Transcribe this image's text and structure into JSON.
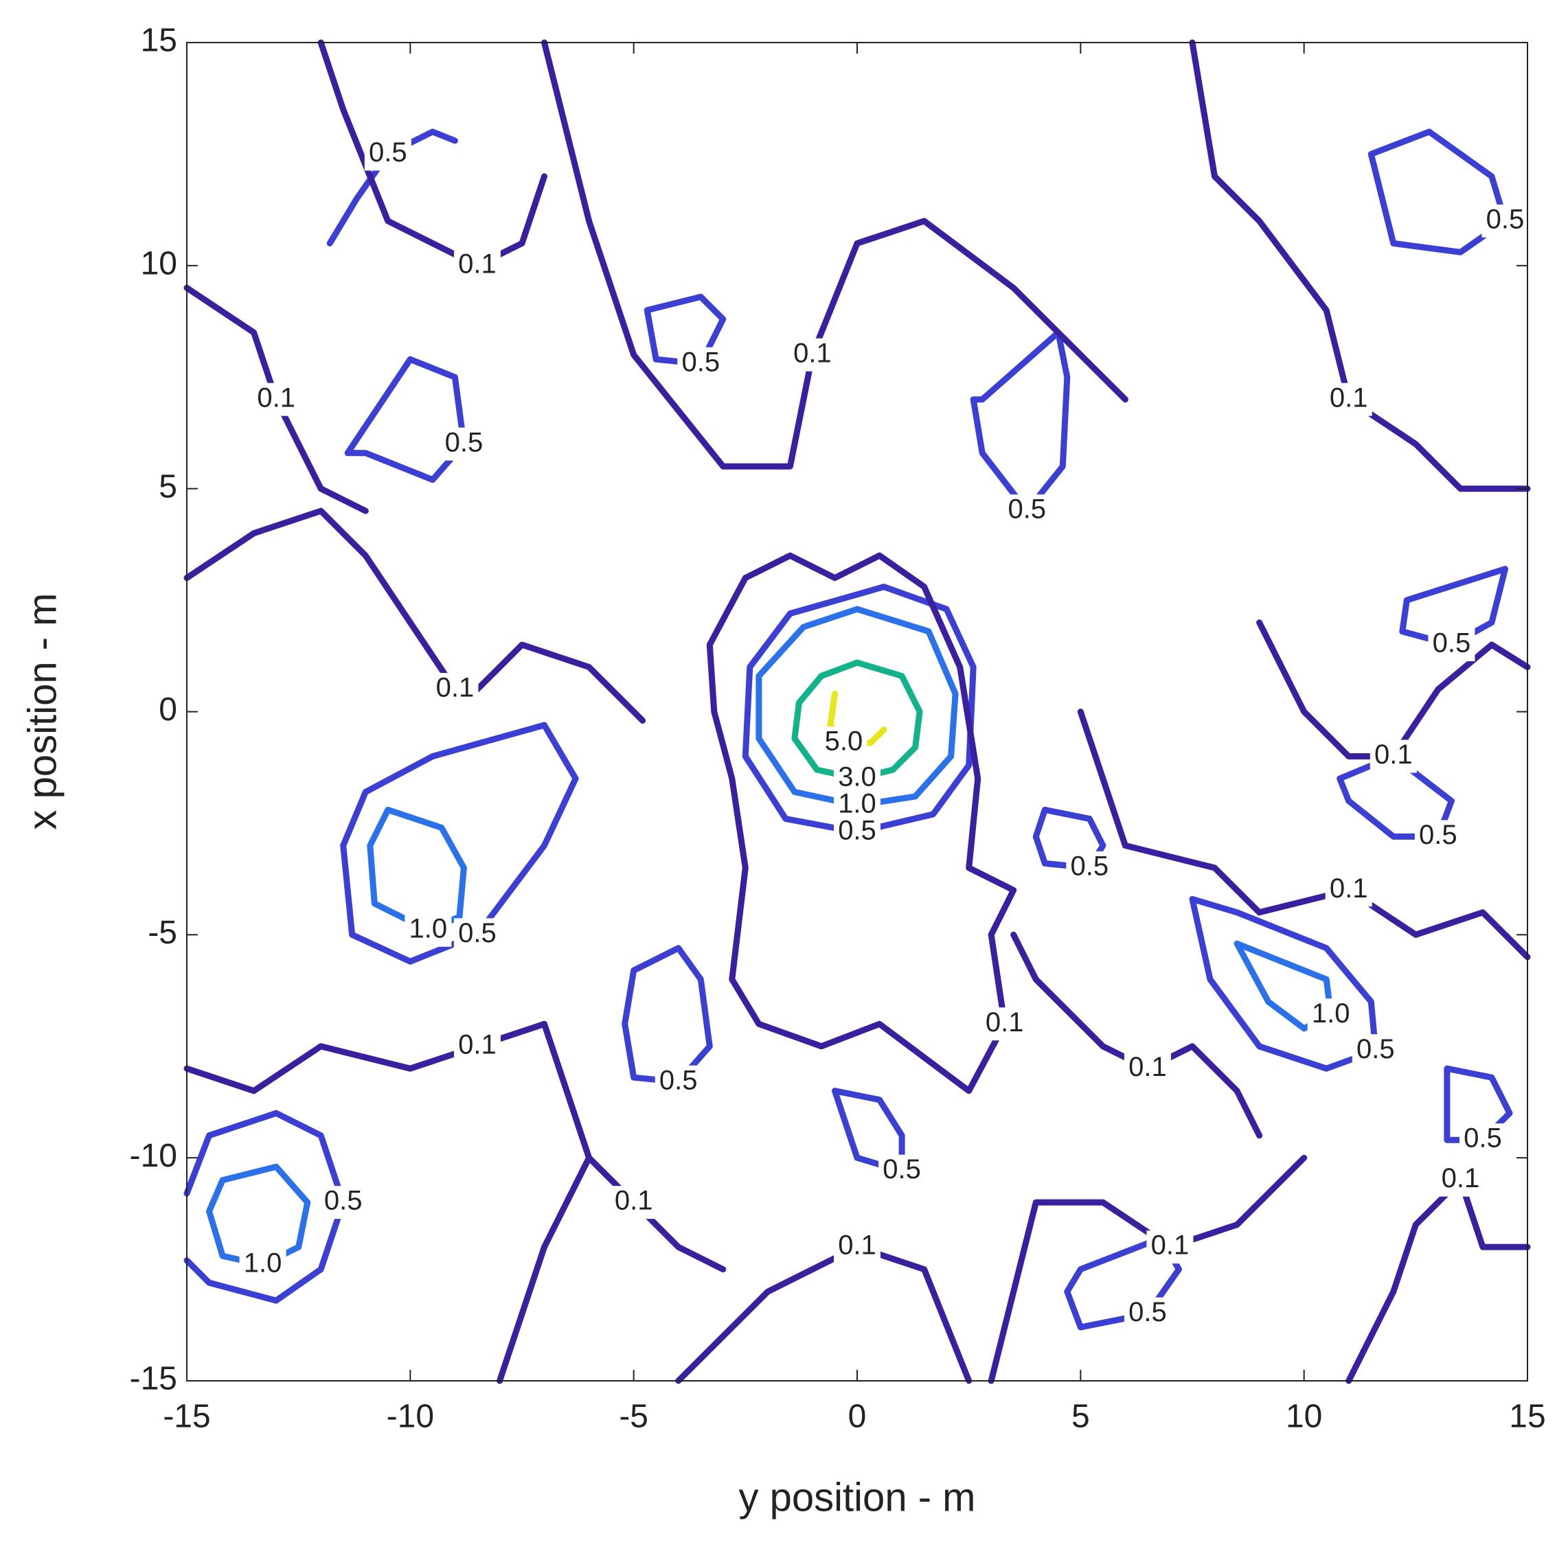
{
  "chart_data": {
    "type": "contour",
    "xlabel": "y position - m",
    "ylabel": "x position - m",
    "xlim": [
      -15,
      15
    ],
    "ylim": [
      -15,
      15
    ],
    "xticks": [
      -15,
      -10,
      -5,
      0,
      5,
      10,
      15
    ],
    "yticks": [
      -15,
      -10,
      -5,
      0,
      5,
      10,
      15
    ],
    "levels": [
      {
        "value": 0.1,
        "label": "0.1",
        "color": "#3a1f9e"
      },
      {
        "value": 0.5,
        "label": "0.5",
        "color": "#3c3fd4"
      },
      {
        "value": 1,
        "label": "1.0",
        "color": "#2b72ea"
      },
      {
        "value": 3,
        "label": "3.0",
        "color": "#12b38c"
      },
      {
        "value": 5,
        "label": "5.0",
        "color": "#e6e61a"
      }
    ],
    "contours": [
      {
        "level": 5,
        "x": [
          -0.5,
          -0.6,
          -0.3,
          0.3,
          0.6
        ],
        "y": [
          0.4,
          -0.3,
          -0.7,
          -0.7,
          -0.4
        ]
      },
      {
        "level": 3,
        "x": [
          0,
          1.0,
          1.4,
          1.3,
          0.8,
          0,
          -0.9,
          -1.4,
          -1.3,
          -0.8,
          0
        ],
        "y": [
          1.1,
          0.8,
          0,
          -0.8,
          -1.3,
          -1.5,
          -1.3,
          -0.6,
          0.2,
          0.8,
          1.1
        ]
      },
      {
        "level": 1,
        "x": [
          0,
          1.6,
          2.2,
          2.1,
          1.3,
          0,
          -1.4,
          -2.2,
          -2.2,
          -1.2,
          0
        ],
        "y": [
          2.3,
          1.8,
          0.4,
          -1.0,
          -1.9,
          -2.1,
          -1.8,
          -0.6,
          0.8,
          1.9,
          2.3
        ]
      },
      {
        "level": 0.5,
        "x": [
          0.6,
          2.0,
          2.6,
          2.5,
          1.7,
          0,
          -1.6,
          -2.5,
          -2.4,
          -1.5,
          0.6
        ],
        "y": [
          2.8,
          2.3,
          1.0,
          -1.2,
          -2.3,
          -2.7,
          -2.4,
          -1.0,
          1.0,
          2.2,
          2.8
        ]
      },
      {
        "level": 0.1,
        "x": [
          -2.5,
          -3.3,
          -3.2,
          -2.8,
          -2.5,
          -2.8,
          -2.2,
          -0.8,
          0.5,
          2.5,
          3.3,
          3.0,
          3.5,
          2.5,
          2.7,
          2.3,
          1.5,
          0.5,
          -0.5,
          -1.5,
          -2.5
        ],
        "y": [
          3.0,
          1.5,
          0,
          -1.5,
          -3.5,
          -6.0,
          -7.0,
          -7.5,
          -7.0,
          -8.5,
          -7.0,
          -5.0,
          -4.0,
          -3.5,
          -1.5,
          1.0,
          2.8,
          3.5,
          3.0,
          3.5,
          3.0
        ]
      },
      {
        "level": 1,
        "x": [
          -10.5,
          -9.3,
          -8.8,
          -8.9,
          -9.6,
          -10.8,
          -10.9,
          -10.5
        ],
        "y": [
          -2.2,
          -2.6,
          -3.5,
          -4.6,
          -4.9,
          -4.3,
          -3.0,
          -2.2
        ]
      },
      {
        "level": 0.5,
        "x": [
          -11,
          -9.5,
          -7,
          -6.3,
          -7,
          -8.5,
          -10,
          -11.3,
          -11.5,
          -11
        ],
        "y": [
          -1.8,
          -1.0,
          -0.3,
          -1.5,
          -3.0,
          -5.0,
          -5.6,
          -5.0,
          -3,
          -1.8
        ]
      },
      {
        "level": 1,
        "x": [
          -14.2,
          -13.0,
          -12.3,
          -12.5,
          -13.3,
          -14.2,
          -14.5,
          -14.2
        ],
        "y": [
          -10.5,
          -10.2,
          -11.0,
          -12.0,
          -12.4,
          -12.2,
          -11.2,
          -10.5
        ]
      },
      {
        "level": 0.5,
        "x": [
          -15,
          -14.5,
          -13,
          -12,
          -11.5,
          -12,
          -13,
          -14.5,
          -15
        ],
        "y": [
          -10.8,
          -9.5,
          -9.0,
          -9.5,
          -11.0,
          -12.5,
          -13.2,
          -12.8,
          -12.3
        ]
      },
      {
        "level": 1,
        "x": [
          8.5,
          9.5,
          10.5,
          10.6,
          10,
          9.2,
          8.5
        ],
        "y": [
          -5.2,
          -5.6,
          -6.0,
          -6.8,
          -7.1,
          -6.5,
          -5.2
        ]
      },
      {
        "level": 0.5,
        "x": [
          7.5,
          8.5,
          10.5,
          11.5,
          11.6,
          10.5,
          9.0,
          7.9,
          7.5
        ],
        "y": [
          -4.2,
          -4.5,
          -5.3,
          -6.5,
          -7.6,
          -8.0,
          -7.5,
          -6.0,
          -4.2
        ]
      },
      {
        "level": 0.5,
        "x": [
          -4.7,
          -3.5,
          -3,
          -3.5,
          -4.5,
          -4.7
        ],
        "y": [
          9.0,
          9.3,
          8.8,
          7.8,
          7.9,
          9.0
        ]
      },
      {
        "level": 0.5,
        "x": [
          2.8,
          4.5,
          4.7,
          4.6,
          3.8,
          2.8,
          2.6,
          2.8
        ],
        "y": [
          7.0,
          8.5,
          7.5,
          5.5,
          4.5,
          5.8,
          7.0,
          7.0
        ]
      },
      {
        "level": 0.5,
        "x": [
          11.5,
          12.8,
          14.2,
          14.5,
          13.5,
          12,
          11.5
        ],
        "y": [
          12.5,
          13.0,
          12.0,
          11.0,
          10.3,
          10.5,
          12.5
        ]
      },
      {
        "level": 0.5,
        "x": [
          -11.4,
          -10.0,
          -9.0,
          -8.8,
          -9.5,
          -11,
          -11.4
        ],
        "y": [
          5.8,
          7.9,
          7.5,
          6.0,
          5.2,
          5.8,
          5.8
        ]
      },
      {
        "level": 0.5,
        "x": [
          -11.8,
          -11.2,
          -10.5,
          -9.5,
          -9
        ],
        "y": [
          10.5,
          11.5,
          12.5,
          13,
          12.8
        ]
      },
      {
        "level": 0.5,
        "x": [
          -5,
          -4,
          -3.5,
          -3.3,
          -4,
          -5,
          -5.2,
          -5
        ],
        "y": [
          -5.8,
          -5.3,
          -6,
          -7.5,
          -8.3,
          -8.2,
          -7,
          -5.8
        ]
      },
      {
        "level": 0.5,
        "x": [
          -0.5,
          0.5,
          1.0,
          1.0,
          0.0,
          -0.5
        ],
        "y": [
          -8.5,
          -8.7,
          -9.5,
          -10.3,
          -10.0,
          -8.5
        ]
      },
      {
        "level": 0.5,
        "x": [
          4.2,
          5.2,
          5.5,
          5.2,
          4.2,
          4.0,
          4.2
        ],
        "y": [
          -2.2,
          -2.4,
          -3.0,
          -3.5,
          -3.4,
          -2.8,
          -2.2
        ]
      },
      {
        "level": 0.5,
        "x": [
          10.8,
          12,
          13.3,
          13,
          12,
          11,
          10.8
        ],
        "y": [
          -1.5,
          -1.0,
          -2.0,
          -2.8,
          -2.8,
          -2.0,
          -1.5
        ]
      },
      {
        "level": 0.5,
        "x": [
          12.3,
          14.5,
          14.2,
          13.3,
          12.2,
          12.3
        ],
        "y": [
          2.5,
          3.2,
          2.0,
          1.5,
          1.8,
          2.5
        ]
      },
      {
        "level": 0.5,
        "x": [
          13.2,
          14.2,
          14.6,
          14.0,
          13.2,
          13.2
        ],
        "y": [
          -8.0,
          -8.2,
          -9.0,
          -9.6,
          -9.6,
          -8.0
        ]
      },
      {
        "level": 0.5,
        "x": [
          5,
          6.8,
          7.2,
          6.5,
          5.0,
          4.7,
          5
        ],
        "y": [
          -12.5,
          -11.8,
          -12.5,
          -13.5,
          -13.8,
          -13.0,
          -12.5
        ]
      },
      {
        "level": 0.1,
        "x": [
          -7,
          -6,
          -5,
          -3,
          -1.5,
          -1,
          0,
          1.5,
          3.5,
          5,
          6
        ],
        "y": [
          15,
          11,
          8,
          5.5,
          5.5,
          8,
          10.5,
          11,
          9.5,
          8,
          7
        ]
      },
      {
        "level": 0.1,
        "x": [
          -15,
          -13.5,
          -12,
          -11,
          -10,
          -9,
          -8.5,
          -7.5,
          -6,
          -5,
          -4.8
        ],
        "y": [
          3,
          4,
          4.5,
          3.5,
          2,
          0.5,
          0.5,
          1.5,
          1,
          0,
          -0.2
        ]
      },
      {
        "level": 0.1,
        "x": [
          -15,
          -13.5,
          -12,
          -10,
          -8.5,
          -7,
          -6.5,
          -6
        ],
        "y": [
          -8,
          -8.5,
          -7.5,
          -8,
          -7.5,
          -7,
          -8.5,
          -10
        ]
      },
      {
        "level": 0.1,
        "x": [
          -8,
          -7,
          -6,
          -5,
          -4,
          -3
        ],
        "y": [
          -15,
          -12,
          -10,
          -11,
          -12,
          -12.5
        ]
      },
      {
        "level": 0.1,
        "x": [
          -4,
          -2,
          0,
          1.5,
          2.5
        ],
        "y": [
          -15,
          -13,
          -12,
          -12.5,
          -15
        ]
      },
      {
        "level": 0.1,
        "x": [
          3,
          4,
          5.5,
          7,
          8.5,
          10
        ],
        "y": [
          -15,
          -11,
          -11,
          -12,
          -11.5,
          -10
        ]
      },
      {
        "level": 0.1,
        "x": [
          5,
          6,
          8,
          9,
          11,
          12.5,
          14,
          15
        ],
        "y": [
          0,
          -3,
          -3.5,
          -4.5,
          -4,
          -5,
          -4.5,
          -5.5
        ]
      },
      {
        "level": 0.1,
        "x": [
          7.5,
          8,
          9,
          10.5,
          11,
          12.5,
          13.5,
          15
        ],
        "y": [
          15,
          12,
          11,
          9,
          7,
          6,
          5,
          5
        ]
      },
      {
        "level": 0.1,
        "x": [
          9,
          10,
          11,
          12,
          13,
          14.2,
          15
        ],
        "y": [
          2,
          0,
          -1,
          -1,
          0.5,
          1.5,
          1
        ]
      },
      {
        "level": 0.1,
        "x": [
          -12,
          -11.5,
          -10.5,
          -8.5,
          -7.5,
          -7
        ],
        "y": [
          15,
          13.5,
          11,
          10,
          10.5,
          12
        ]
      },
      {
        "level": 0.1,
        "x": [
          -15,
          -13.5,
          -13,
          -12,
          -11
        ],
        "y": [
          9.5,
          8.5,
          7,
          5,
          4.5
        ]
      },
      {
        "level": 0.1,
        "x": [
          11,
          12,
          12.5,
          13.5,
          14,
          15
        ],
        "y": [
          -15,
          -13,
          -11.5,
          -10.5,
          -12,
          -12
        ]
      },
      {
        "level": 0.1,
        "x": [
          3.5,
          4,
          5.5,
          6.5,
          7.5,
          8.5,
          9
        ],
        "y": [
          -5,
          -6,
          -7.5,
          -8,
          -7.5,
          -8.5,
          -9.5
        ]
      }
    ]
  }
}
